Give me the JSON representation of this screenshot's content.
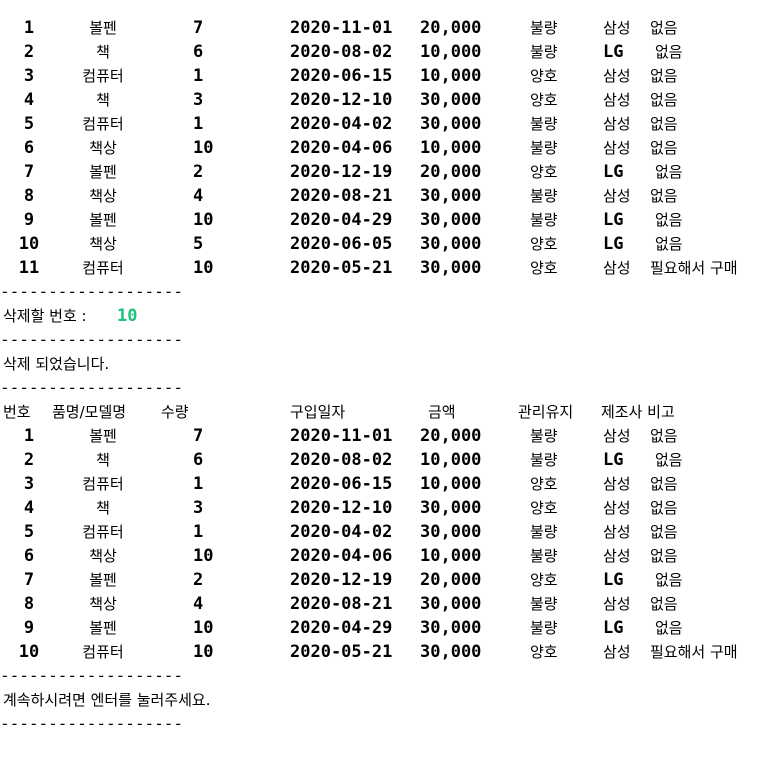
{
  "separator": "-------------------",
  "headers": {
    "no": "번호",
    "name": "품명/모델명",
    "qty": "수량",
    "date": "구입일자",
    "amount": "금액",
    "mgmt": "관리유지",
    "maker_note": "제조사 비고"
  },
  "prompt": {
    "label": "삭제할 번호 : ",
    "value": "10"
  },
  "deleted_message": "삭제 되었습니다.",
  "continue_message": "계속하시려면 엔터를 눌러주세요.",
  "table_before": [
    {
      "no": "1",
      "name": "볼펜",
      "qty": "7",
      "date": "2020-11-01",
      "amount": "20,000",
      "mgmt": "불량",
      "maker": "삼성",
      "note": "없음"
    },
    {
      "no": "2",
      "name": "책",
      "qty": "6",
      "date": "2020-08-02",
      "amount": "10,000",
      "mgmt": "불량",
      "maker": "LG",
      "note": "없음"
    },
    {
      "no": "3",
      "name": "컴퓨터",
      "qty": "1",
      "date": "2020-06-15",
      "amount": "10,000",
      "mgmt": "양호",
      "maker": "삼성",
      "note": "없음"
    },
    {
      "no": "4",
      "name": "책",
      "qty": "3",
      "date": "2020-12-10",
      "amount": "30,000",
      "mgmt": "양호",
      "maker": "삼성",
      "note": "없음"
    },
    {
      "no": "5",
      "name": "컴퓨터",
      "qty": "1",
      "date": "2020-04-02",
      "amount": "30,000",
      "mgmt": "불량",
      "maker": "삼성",
      "note": "없음"
    },
    {
      "no": "6",
      "name": "책상",
      "qty": "10",
      "date": "2020-04-06",
      "amount": "10,000",
      "mgmt": "불량",
      "maker": "삼성",
      "note": "없음"
    },
    {
      "no": "7",
      "name": "볼펜",
      "qty": "2",
      "date": "2020-12-19",
      "amount": "20,000",
      "mgmt": "양호",
      "maker": "LG",
      "note": "없음"
    },
    {
      "no": "8",
      "name": "책상",
      "qty": "4",
      "date": "2020-08-21",
      "amount": "30,000",
      "mgmt": "불량",
      "maker": "삼성",
      "note": "없음"
    },
    {
      "no": "9",
      "name": "볼펜",
      "qty": "10",
      "date": "2020-04-29",
      "amount": "30,000",
      "mgmt": "불량",
      "maker": "LG",
      "note": "없음"
    },
    {
      "no": "10",
      "name": "책상",
      "qty": "5",
      "date": "2020-06-05",
      "amount": "30,000",
      "mgmt": "양호",
      "maker": "LG",
      "note": "없음"
    },
    {
      "no": "11",
      "name": "컴퓨터",
      "qty": "10",
      "date": "2020-05-21",
      "amount": "30,000",
      "mgmt": "양호",
      "maker": "삼성",
      "note": "필요해서 구매"
    }
  ],
  "table_after": [
    {
      "no": "1",
      "name": "볼펜",
      "qty": "7",
      "date": "2020-11-01",
      "amount": "20,000",
      "mgmt": "불량",
      "maker": "삼성",
      "note": "없음"
    },
    {
      "no": "2",
      "name": "책",
      "qty": "6",
      "date": "2020-08-02",
      "amount": "10,000",
      "mgmt": "불량",
      "maker": "LG",
      "note": "없음"
    },
    {
      "no": "3",
      "name": "컴퓨터",
      "qty": "1",
      "date": "2020-06-15",
      "amount": "10,000",
      "mgmt": "양호",
      "maker": "삼성",
      "note": "없음"
    },
    {
      "no": "4",
      "name": "책",
      "qty": "3",
      "date": "2020-12-10",
      "amount": "30,000",
      "mgmt": "양호",
      "maker": "삼성",
      "note": "없음"
    },
    {
      "no": "5",
      "name": "컴퓨터",
      "qty": "1",
      "date": "2020-04-02",
      "amount": "30,000",
      "mgmt": "불량",
      "maker": "삼성",
      "note": "없음"
    },
    {
      "no": "6",
      "name": "책상",
      "qty": "10",
      "date": "2020-04-06",
      "amount": "10,000",
      "mgmt": "불량",
      "maker": "삼성",
      "note": "없음"
    },
    {
      "no": "7",
      "name": "볼펜",
      "qty": "2",
      "date": "2020-12-19",
      "amount": "20,000",
      "mgmt": "양호",
      "maker": "LG",
      "note": "없음"
    },
    {
      "no": "8",
      "name": "책상",
      "qty": "4",
      "date": "2020-08-21",
      "amount": "30,000",
      "mgmt": "불량",
      "maker": "삼성",
      "note": "없음"
    },
    {
      "no": "9",
      "name": "볼펜",
      "qty": "10",
      "date": "2020-04-29",
      "amount": "30,000",
      "mgmt": "불량",
      "maker": "LG",
      "note": "없음"
    },
    {
      "no": "10",
      "name": "컴퓨터",
      "qty": "10",
      "date": "2020-05-21",
      "amount": "30,000",
      "mgmt": "양호",
      "maker": "삼성",
      "note": "필요해서 구매"
    }
  ]
}
